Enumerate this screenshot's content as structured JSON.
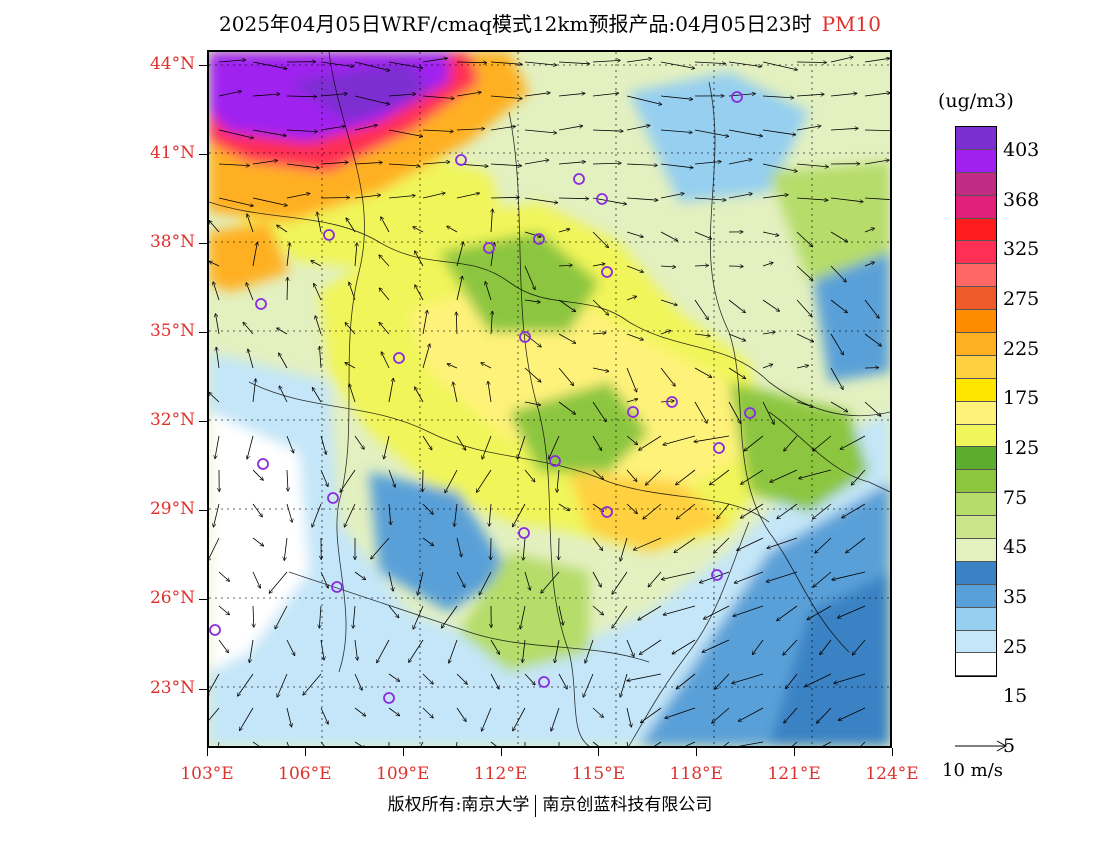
{
  "title": {
    "main": "2025年04月05日WRF/cmaq模式12km预报产品:04月05日23时",
    "product": "PM10"
  },
  "map": {
    "lat_labels": [
      "44°N",
      "41°N",
      "38°N",
      "35°N",
      "32°N",
      "29°N",
      "26°N",
      "23°N"
    ],
    "lon_labels": [
      "103°E",
      "106°E",
      "109°E",
      "112°E",
      "115°E",
      "118°E",
      "121°E",
      "124°E"
    ],
    "lat_values": [
      44,
      41,
      38,
      35,
      32,
      29,
      26,
      23
    ],
    "lon_values": [
      103,
      106,
      109,
      112,
      115,
      118,
      121,
      124
    ],
    "lat_range": [
      21,
      44.5
    ],
    "lon_range": [
      103,
      124
    ],
    "station_color": "#8a2be2",
    "stations_count_visible": 25
  },
  "legend": {
    "unit": "(ug/m3)",
    "colors": [
      "#7b2fd0",
      "#a020f0",
      "#c02c84",
      "#e21f7a",
      "#ff1c1c",
      "#ff2f55",
      "#ff6666",
      "#ef5a2a",
      "#ff8c00",
      "#ffb020",
      "#ffd040",
      "#ffe600",
      "#fff27a",
      "#f0f55a",
      "#5cac2e",
      "#8cc63f",
      "#b6dc6a",
      "#c9e48a",
      "#e3f0c0",
      "#3b82c4",
      "#5aa0d8",
      "#96cff0",
      "#c4e6f8",
      "#ffffff"
    ],
    "labels": [
      "403",
      "368",
      "325",
      "275",
      "225",
      "175",
      "125",
      "75",
      "45",
      "35",
      "25",
      "15",
      "5"
    ]
  },
  "wind_scale": {
    "label": "10 m/s"
  },
  "copyright": {
    "left": "版权所有:南京大学",
    "right": "南京创蓝科技有限公司"
  }
}
